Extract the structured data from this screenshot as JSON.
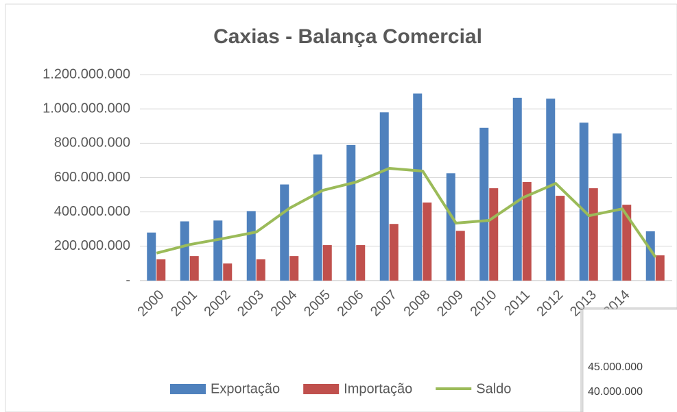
{
  "chart_data": {
    "type": "bar_line",
    "title": "Caxias - Balança Comercial",
    "categories": [
      "2000",
      "2001",
      "2002",
      "2003",
      "2004",
      "2005",
      "2006",
      "2007",
      "2008",
      "2009",
      "2010",
      "2011",
      "2012",
      "2013",
      "2014",
      null
    ],
    "series": [
      {
        "name": "Exportação",
        "type": "bar",
        "color": "#4f81bd",
        "values": [
          280000000,
          345000000,
          350000000,
          405000000,
          560000000,
          735000000,
          790000000,
          980000000,
          1090000000,
          625000000,
          890000000,
          1065000000,
          1060000000,
          920000000,
          857000000,
          287000000
        ]
      },
      {
        "name": "Importação",
        "type": "bar",
        "color": "#c0504d",
        "values": [
          124000000,
          143000000,
          100000000,
          124000000,
          143000000,
          207000000,
          207000000,
          330000000,
          455000000,
          290000000,
          538000000,
          574000000,
          494000000,
          538000000,
          442000000,
          147000000
        ]
      },
      {
        "name": "Saldo",
        "type": "line",
        "color": "#9bbb59",
        "values": [
          160000000,
          210000000,
          245000000,
          283000000,
          422000000,
          526000000,
          574000000,
          654000000,
          638000000,
          335000000,
          351000000,
          482000000,
          566000000,
          378000000,
          418000000,
          136000000
        ]
      }
    ],
    "ylim": [
      0,
      1200000000
    ],
    "yticks": [
      {
        "value": 0,
        "label": "-"
      },
      {
        "value": 200000000,
        "label": "200.000.000"
      },
      {
        "value": 400000000,
        "label": "400.000.000"
      },
      {
        "value": 600000000,
        "label": "600.000.000"
      },
      {
        "value": 800000000,
        "label": "800.000.000"
      },
      {
        "value": 1000000000,
        "label": "1.000.000.000"
      },
      {
        "value": 1200000000,
        "label": "1.200.000.000"
      }
    ],
    "grid": true,
    "legend": "bottom"
  },
  "overlay": {
    "labels": [
      "45.000.000",
      "40.000.000"
    ]
  }
}
